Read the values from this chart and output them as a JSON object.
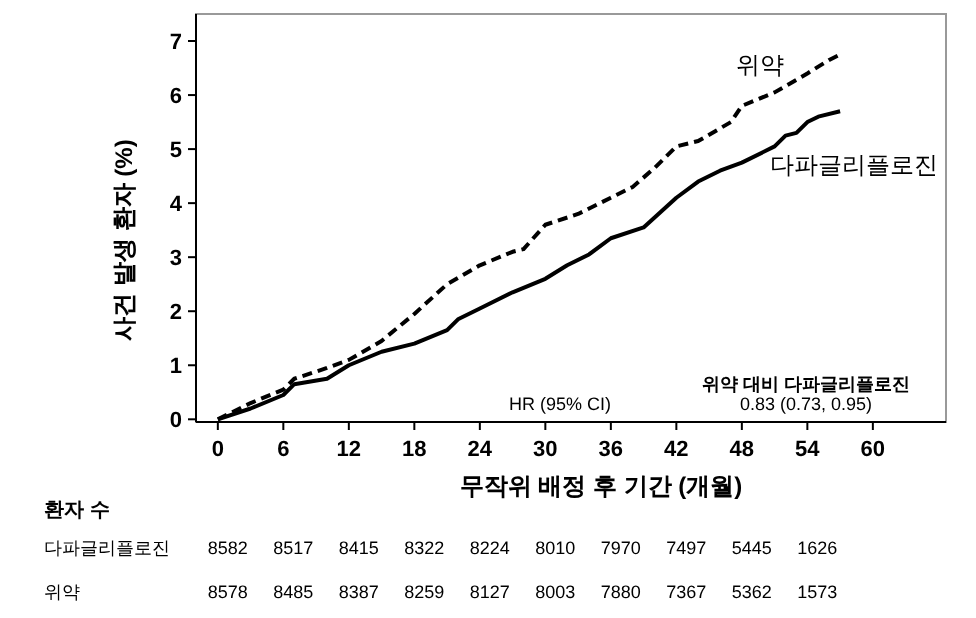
{
  "chart_data": {
    "type": "line",
    "xlabel": "무작위 배정 후 기간 (개월)",
    "ylabel": "사건 발생 환자 (%)",
    "xlim": [
      -2,
      66.7
    ],
    "ylim": [
      -0.05,
      7.5
    ],
    "xticks": [
      0,
      6,
      12,
      18,
      24,
      30,
      36,
      42,
      48,
      54,
      60
    ],
    "yticks": [
      0,
      1,
      2,
      3,
      4,
      5,
      6,
      7
    ],
    "grid": false,
    "legend": false,
    "series": [
      {
        "name": "위약",
        "color": "#000000",
        "line_style": "dashed",
        "x": [
          0,
          3,
          6,
          7,
          10,
          12,
          15,
          18,
          21,
          24,
          27,
          28,
          30,
          33,
          36,
          38,
          40,
          42,
          44,
          47,
          48,
          51,
          54,
          56,
          57
        ],
        "values": [
          0,
          0.3,
          0.55,
          0.75,
          0.95,
          1.1,
          1.45,
          1.95,
          2.5,
          2.85,
          3.1,
          3.15,
          3.6,
          3.8,
          4.1,
          4.3,
          4.65,
          5.05,
          5.15,
          5.5,
          5.8,
          6.05,
          6.4,
          6.65,
          6.75
        ]
      },
      {
        "name": "다파글리플로진",
        "color": "#000000",
        "line_style": "solid",
        "x": [
          0,
          3,
          6,
          7,
          10,
          12,
          15,
          18,
          21,
          22,
          24,
          27,
          30,
          32,
          34,
          36,
          39,
          42,
          44,
          46,
          48,
          51,
          52,
          53,
          54,
          55,
          57
        ],
        "values": [
          0,
          0.2,
          0.45,
          0.65,
          0.75,
          1.0,
          1.25,
          1.4,
          1.65,
          1.85,
          2.05,
          2.35,
          2.6,
          2.85,
          3.05,
          3.35,
          3.55,
          4.1,
          4.4,
          4.6,
          4.75,
          5.05,
          5.25,
          5.3,
          5.5,
          5.6,
          5.7
        ]
      }
    ],
    "annotations": [
      "HR (95% CI)",
      "위약 대비 다파글리플로진",
      "0.83 (0.73, 0.95)",
      "환자 수",
      "다파글리플로진",
      "8582 8517 8415 8322 8224 8010 7970 7497 5445 1626",
      "위약",
      "8578 8485 8387 8259 8127 8003 7880 7367 5362 1573"
    ]
  }
}
